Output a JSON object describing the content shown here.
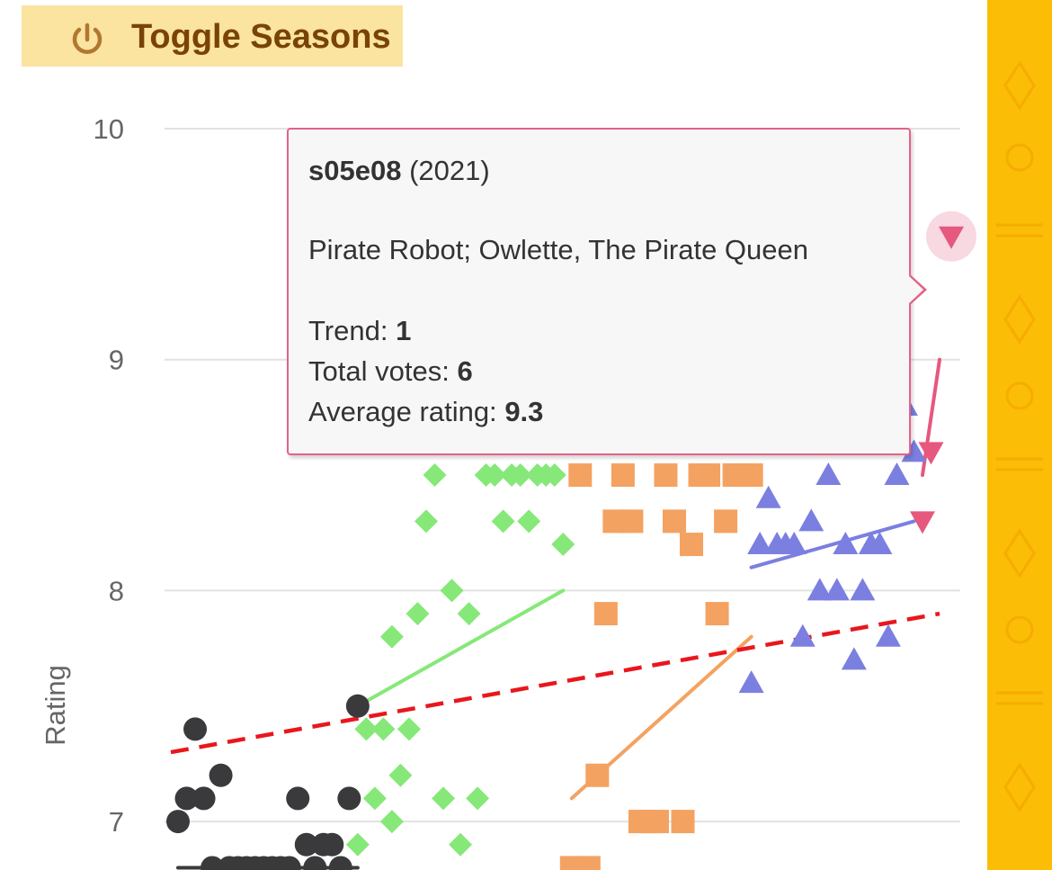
{
  "toggle": {
    "label": "Toggle Seasons",
    "icon": "power-icon",
    "color": "#7a4306",
    "background": "#fbe3a0"
  },
  "side_band": {
    "color": "#fbbd06"
  },
  "tooltip": {
    "episode": "s05e08",
    "year": "(2021)",
    "title": "Pirate Robot; Owlette, The Pirate Queen",
    "trend_label": "Trend:",
    "trend_value": "1",
    "votes_label": "Total votes:",
    "votes_value": "6",
    "avg_label": "Average rating:",
    "avg_value": "9.3",
    "border_color": "#e36387"
  },
  "chart_data": {
    "type": "scatter",
    "ylabel": "Rating",
    "yticks": [
      7,
      8,
      9,
      10
    ],
    "ylim": [
      6.8,
      10
    ],
    "xlim": [
      0,
      44
    ],
    "grid": true,
    "series": [
      {
        "season": 1,
        "marker": "circle",
        "color": "#3a3a3c",
        "x": [
          1,
          2,
          3,
          4,
          5,
          6,
          7,
          8,
          9,
          10,
          11,
          12,
          13,
          14,
          15,
          16,
          17,
          18,
          19,
          20,
          21,
          22
        ],
        "y": [
          7.0,
          7.1,
          7.4,
          7.1,
          6.8,
          7.2,
          6.8,
          6.8,
          6.8,
          6.8,
          6.8,
          6.8,
          6.8,
          6.8,
          7.1,
          6.9,
          6.8,
          6.9,
          6.9,
          6.8,
          7.1,
          7.5
        ],
        "trend": [
          6.8,
          6.8
        ]
      },
      {
        "season": 2,
        "marker": "diamond",
        "color": "#86e878",
        "x": [
          22,
          23,
          24,
          25,
          26,
          26,
          27,
          28,
          29,
          30,
          31,
          32,
          33,
          34,
          35,
          36,
          37,
          38,
          39,
          40,
          41,
          42,
          43,
          44,
          45,
          46
        ],
        "y": [
          6.9,
          7.4,
          7.1,
          7.4,
          7.0,
          7.8,
          7.2,
          7.4,
          7.9,
          8.3,
          8.5,
          7.1,
          8.0,
          6.9,
          7.9,
          7.1,
          8.5,
          8.5,
          8.3,
          8.5,
          8.5,
          8.3,
          8.5,
          8.5,
          8.5,
          8.2
        ],
        "trend": [
          7.5,
          8.0
        ]
      },
      {
        "season": 3,
        "marker": "square",
        "color": "#f4a261",
        "x": [
          47,
          48,
          49,
          50,
          51,
          52,
          53,
          54,
          55,
          56,
          57,
          58,
          59,
          60,
          61,
          62,
          63,
          64,
          65,
          66,
          67,
          68
        ],
        "y": [
          6.8,
          8.5,
          6.8,
          7.2,
          7.9,
          8.3,
          8.5,
          8.3,
          7.0,
          7.0,
          7.0,
          8.5,
          8.3,
          7.0,
          8.2,
          8.5,
          8.5,
          7.9,
          8.3,
          8.5,
          8.5,
          8.5
        ],
        "trend": [
          7.1,
          7.8
        ]
      },
      {
        "season": 4,
        "marker": "triangle-up",
        "color": "#7b7fe0",
        "x": [
          68,
          69,
          70,
          71,
          72,
          73,
          74,
          75,
          76,
          77,
          78,
          79,
          80,
          81,
          82,
          83,
          84,
          85,
          86,
          87
        ],
        "y": [
          7.6,
          8.2,
          8.4,
          8.2,
          8.2,
          8.2,
          7.8,
          8.3,
          8.0,
          8.5,
          8.0,
          8.2,
          7.7,
          8.0,
          8.2,
          8.2,
          7.8,
          8.5,
          8.8,
          8.6
        ],
        "trend": [
          8.1,
          8.3
        ]
      },
      {
        "season": 5,
        "marker": "triangle-down",
        "color": "#e6587e",
        "x": [
          88,
          89,
          90
        ],
        "y": [
          8.3,
          8.6,
          9.3
        ],
        "trend": [
          8.5,
          9.0
        ]
      }
    ],
    "overall_trend": {
      "style": "dashed",
      "color": "#e8171d",
      "from": 7.3,
      "to": 7.9
    }
  }
}
